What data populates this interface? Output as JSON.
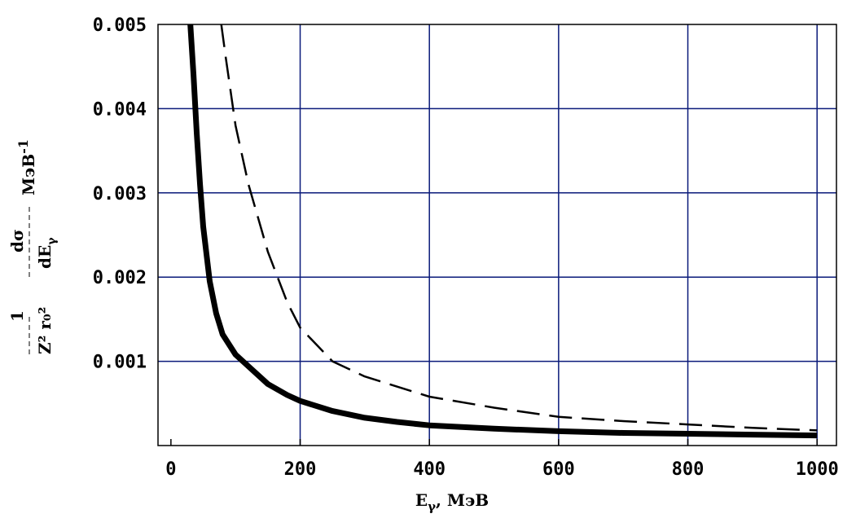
{
  "chart_data": {
    "type": "line",
    "xlabel_parts": {
      "main": "E",
      "sub": "γ",
      "unit": ", МэВ"
    },
    "ylabel_parts": {
      "num_left": "1",
      "num_right": "dσ",
      "den_left": "Z² r₀²",
      "den_right": "dE",
      "den_sub": "γ",
      "unit": "МэВ",
      "unit_sup": "-1"
    },
    "xlim": [
      -20,
      1030
    ],
    "ylim": [
      0,
      0.005
    ],
    "x_ticks": [
      0,
      200,
      400,
      600,
      800,
      1000
    ],
    "x_tick_labels": [
      "0",
      "200",
      "400",
      "600",
      "800",
      "1000"
    ],
    "y_ticks": [
      0.001,
      0.002,
      0.003,
      0.004,
      0.005
    ],
    "y_tick_labels": [
      "0.001",
      "0.002",
      "0.003",
      "0.004",
      "0.005"
    ],
    "grid": true,
    "series": [
      {
        "style": "solid-thick",
        "x": [
          30,
          35,
          40,
          45,
          50,
          60,
          70,
          80,
          100,
          120,
          150,
          180,
          200,
          250,
          300,
          350,
          400,
          500,
          600,
          700,
          800,
          900,
          1000
        ],
        "y": [
          0.005,
          0.0044,
          0.0037,
          0.0031,
          0.0026,
          0.00195,
          0.00157,
          0.00132,
          0.00108,
          0.00094,
          0.00073,
          0.0006,
          0.00053,
          0.00041,
          0.00033,
          0.00028,
          0.00024,
          0.0002,
          0.00017,
          0.00015,
          0.00014,
          0.00013,
          0.00012
        ]
      },
      {
        "style": "dashed",
        "x": [
          78,
          85,
          100,
          120,
          150,
          180,
          200,
          250,
          300,
          400,
          500,
          600,
          700,
          800,
          900,
          1000
        ],
        "y": [
          0.005,
          0.0046,
          0.0038,
          0.0031,
          0.0023,
          0.0017,
          0.0014,
          0.001,
          0.00082,
          0.00058,
          0.00045,
          0.00034,
          0.00029,
          0.00025,
          0.00021,
          0.00018
        ]
      }
    ]
  }
}
